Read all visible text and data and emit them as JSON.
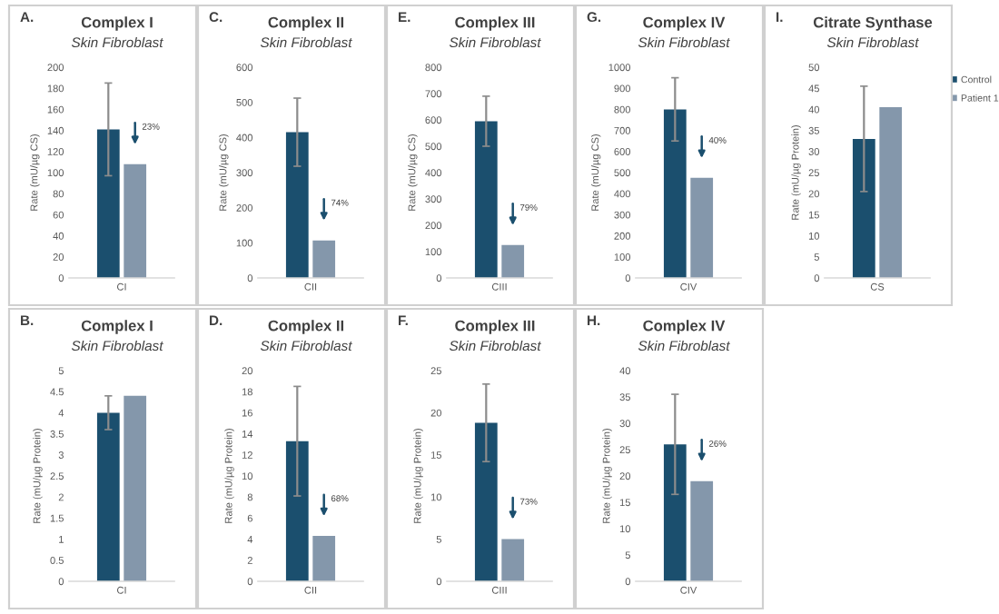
{
  "chart_data": [
    {
      "type": "bar",
      "title": "Complex I",
      "subtitle": "Skin Fibroblast",
      "ylabel": "Rate (mU/µg CS)",
      "categories": [
        "CI"
      ],
      "ylim": [
        0,
        200
      ],
      "yticks": [
        0,
        20,
        40,
        60,
        80,
        100,
        120,
        140,
        160,
        180,
        200
      ],
      "annotations": [
        "A.",
        "23%"
      ],
      "legend": false,
      "series": [
        {
          "color": "#1b4f6e",
          "values": [
            141
          ],
          "errors": [
            44
          ]
        },
        {
          "color": "#8497ab",
          "values": [
            108
          ]
        }
      ]
    },
    {
      "type": "bar",
      "title": "Complex II",
      "subtitle": "Skin Fibroblast",
      "ylabel": "Rate (mU/µg CS)",
      "categories": [
        "CII"
      ],
      "ylim": [
        0,
        600
      ],
      "yticks": [
        0,
        100,
        200,
        300,
        400,
        500,
        600
      ],
      "annotations": [
        "C.",
        "74%"
      ],
      "legend": false,
      "series": [
        {
          "color": "#1b4f6e",
          "values": [
            415
          ],
          "errors": [
            97
          ]
        },
        {
          "color": "#8497ab",
          "values": [
            107
          ]
        }
      ]
    },
    {
      "type": "bar",
      "title": "Complex III",
      "subtitle": "Skin Fibroblast",
      "ylabel": "Rate (mU/µg CS)",
      "categories": [
        "CIII"
      ],
      "ylim": [
        0,
        800
      ],
      "yticks": [
        0,
        100,
        200,
        300,
        400,
        500,
        600,
        700,
        800
      ],
      "annotations": [
        "E.",
        "79%"
      ],
      "legend": false,
      "series": [
        {
          "color": "#1b4f6e",
          "values": [
            595
          ],
          "errors": [
            95
          ]
        },
        {
          "color": "#8497ab",
          "values": [
            125
          ]
        }
      ]
    },
    {
      "type": "bar",
      "title": "Complex IV",
      "subtitle": "Skin Fibroblast",
      "ylabel": "Rate (mU/µg CS)",
      "categories": [
        "CIV"
      ],
      "ylim": [
        0,
        1000
      ],
      "yticks": [
        0,
        100,
        200,
        300,
        400,
        500,
        600,
        700,
        800,
        900,
        1000
      ],
      "annotations": [
        "G.",
        "40%"
      ],
      "legend": false,
      "series": [
        {
          "color": "#1b4f6e",
          "values": [
            800
          ],
          "errors": [
            150
          ]
        },
        {
          "color": "#8497ab",
          "values": [
            475
          ]
        }
      ]
    },
    {
      "type": "bar",
      "title": "Citrate Synthase",
      "subtitle": "Skin Fibroblast",
      "ylabel": "Rate (mU/µg Protein)",
      "categories": [
        "CS"
      ],
      "ylim": [
        0,
        50
      ],
      "yticks": [
        0,
        5,
        10,
        15,
        20,
        25,
        30,
        35,
        40,
        45,
        50
      ],
      "annotations": [
        "I."
      ],
      "legend": "right",
      "series": [
        {
          "name": "Control",
          "color": "#1b4f6e",
          "values": [
            33
          ],
          "errors": [
            12.5
          ]
        },
        {
          "name": "Patient 1",
          "color": "#8497ab",
          "values": [
            40.5
          ]
        }
      ]
    },
    {
      "type": "bar",
      "title": "Complex I",
      "subtitle": "Skin Fibroblast",
      "ylabel": "Rate (mU/µg Protein)",
      "categories": [
        "CI"
      ],
      "ylim": [
        0,
        5
      ],
      "yticks": [
        0,
        0.5,
        1,
        1.5,
        2,
        2.5,
        3,
        3.5,
        4,
        4.5,
        5
      ],
      "annotations": [
        "B."
      ],
      "legend": false,
      "series": [
        {
          "color": "#1b4f6e",
          "values": [
            4.0
          ],
          "errors": [
            0.4
          ]
        },
        {
          "color": "#8497ab",
          "values": [
            4.4
          ]
        }
      ]
    },
    {
      "type": "bar",
      "title": "Complex II",
      "subtitle": "Skin Fibroblast",
      "ylabel": "Rate (mU/µg Protein)",
      "categories": [
        "CII"
      ],
      "ylim": [
        0,
        20
      ],
      "yticks": [
        0,
        2,
        4,
        6,
        8,
        10,
        12,
        14,
        16,
        18,
        20
      ],
      "annotations": [
        "D.",
        "68%"
      ],
      "legend": false,
      "series": [
        {
          "color": "#1b4f6e",
          "values": [
            13.3
          ],
          "errors": [
            5.2
          ]
        },
        {
          "color": "#8497ab",
          "values": [
            4.3
          ]
        }
      ]
    },
    {
      "type": "bar",
      "title": "Complex III",
      "subtitle": "Skin Fibroblast",
      "ylabel": "Rate (mU/µg Protein)",
      "categories": [
        "CIII"
      ],
      "ylim": [
        0,
        25
      ],
      "yticks": [
        0,
        5,
        10,
        15,
        20,
        25
      ],
      "annotations": [
        "F.",
        "73%"
      ],
      "legend": false,
      "series": [
        {
          "color": "#1b4f6e",
          "values": [
            18.8
          ],
          "errors": [
            4.6
          ]
        },
        {
          "color": "#8497ab",
          "values": [
            5.0
          ]
        }
      ]
    },
    {
      "type": "bar",
      "title": "Complex IV",
      "subtitle": "Skin Fibroblast",
      "ylabel": "Rate (mU/µg Protein)",
      "categories": [
        "CIV"
      ],
      "ylim": [
        0,
        40
      ],
      "yticks": [
        0,
        5,
        10,
        15,
        20,
        25,
        30,
        35,
        40
      ],
      "annotations": [
        "H.",
        "26%"
      ],
      "legend": false,
      "series": [
        {
          "color": "#1b4f6e",
          "values": [
            26
          ],
          "errors": [
            9.5
          ]
        },
        {
          "color": "#8497ab",
          "values": [
            19
          ]
        }
      ]
    }
  ]
}
